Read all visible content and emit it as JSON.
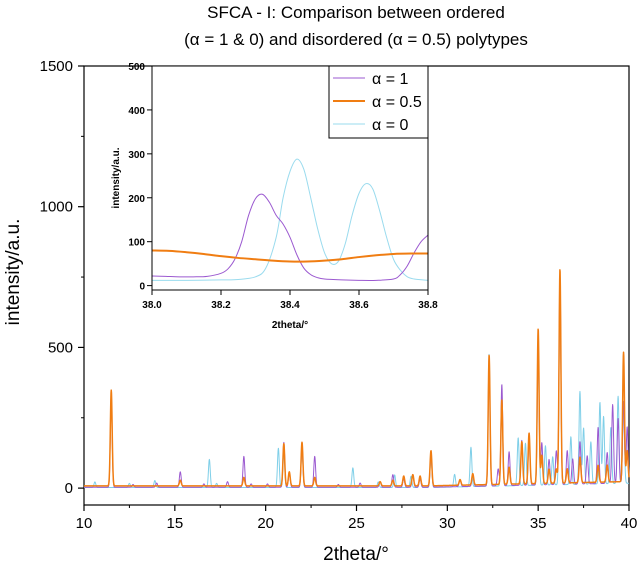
{
  "chart_data": [
    {
      "type": "line",
      "title_lines": [
        "SFCA - I: Comparison between ordered",
        "(α = 1 & 0) and disordered (α = 0.5) polytypes"
      ],
      "xlabel": "2theta/°",
      "ylabel": "intensity/a.u.",
      "xlim": [
        10,
        40
      ],
      "ylim": [
        -60,
        1500
      ],
      "xticks": [
        10,
        15,
        20,
        25,
        30,
        35,
        40
      ],
      "yticks": [
        0,
        500,
        1000,
        1500
      ],
      "grid": false,
      "series": [
        {
          "name": "α = 1",
          "color": "#9b59d0",
          "baseline": 3,
          "peaks": [
            [
              11.5,
              320
            ],
            [
              12.7,
              10
            ],
            [
              14.0,
              15
            ],
            [
              15.3,
              55
            ],
            [
              16.6,
              12
            ],
            [
              17.9,
              20
            ],
            [
              18.8,
              110
            ],
            [
              19.2,
              12
            ],
            [
              20.1,
              12
            ],
            [
              21.0,
              160
            ],
            [
              21.3,
              50
            ],
            [
              22.0,
              150
            ],
            [
              22.7,
              110
            ],
            [
              24.0,
              10
            ],
            [
              25.2,
              15
            ],
            [
              26.3,
              20
            ],
            [
              27.0,
              45
            ],
            [
              27.6,
              30
            ],
            [
              28.1,
              45
            ],
            [
              28.5,
              30
            ],
            [
              29.1,
              120
            ],
            [
              30.7,
              25
            ],
            [
              31.4,
              40
            ],
            [
              32.3,
              430
            ],
            [
              32.8,
              60
            ],
            [
              33.0,
              360
            ],
            [
              33.4,
              120
            ],
            [
              34.1,
              160
            ],
            [
              34.5,
              160
            ],
            [
              35.0,
              490
            ],
            [
              35.2,
              150
            ],
            [
              35.6,
              90
            ],
            [
              36.0,
              120
            ],
            [
              36.2,
              740
            ],
            [
              36.6,
              120
            ],
            [
              36.9,
              90
            ],
            [
              37.3,
              150
            ],
            [
              37.7,
              100
            ],
            [
              38.3,
              200
            ],
            [
              38.8,
              110
            ],
            [
              39.1,
              280
            ],
            [
              39.4,
              230
            ],
            [
              39.7,
              290
            ],
            [
              39.9,
              200
            ]
          ]
        },
        {
          "name": "α = 0.5",
          "color": "#f07d12",
          "baseline": 8,
          "peaks": [
            [
              11.5,
              340
            ],
            [
              15.3,
              20
            ],
            [
              18.8,
              30
            ],
            [
              21.0,
              150
            ],
            [
              21.3,
              50
            ],
            [
              22.0,
              155
            ],
            [
              22.7,
              30
            ],
            [
              26.3,
              15
            ],
            [
              27.0,
              20
            ],
            [
              27.6,
              35
            ],
            [
              28.1,
              40
            ],
            [
              28.5,
              35
            ],
            [
              29.1,
              125
            ],
            [
              30.7,
              20
            ],
            [
              31.4,
              40
            ],
            [
              32.3,
              460
            ],
            [
              33.0,
              300
            ],
            [
              33.4,
              60
            ],
            [
              34.1,
              150
            ],
            [
              34.5,
              180
            ],
            [
              35.0,
              550
            ],
            [
              35.2,
              100
            ],
            [
              35.6,
              50
            ],
            [
              36.0,
              50
            ],
            [
              36.2,
              760
            ],
            [
              36.6,
              50
            ],
            [
              37.3,
              90
            ],
            [
              38.3,
              60
            ],
            [
              38.8,
              60
            ],
            [
              39.7,
              460
            ],
            [
              39.9,
              110
            ]
          ]
        },
        {
          "name": "α = 0",
          "color": "#7fcfe8",
          "baseline": 2,
          "peaks": [
            [
              10.6,
              20
            ],
            [
              12.5,
              15
            ],
            [
              13.9,
              25
            ],
            [
              16.9,
              100
            ],
            [
              17.3,
              15
            ],
            [
              20.7,
              140
            ],
            [
              21.0,
              120
            ],
            [
              22.0,
              140
            ],
            [
              24.8,
              70
            ],
            [
              26.2,
              20
            ],
            [
              27.1,
              45
            ],
            [
              28.0,
              40
            ],
            [
              28.5,
              35
            ],
            [
              29.1,
              110
            ],
            [
              30.4,
              45
            ],
            [
              31.3,
              140
            ],
            [
              32.3,
              470
            ],
            [
              33.0,
              310
            ],
            [
              33.9,
              170
            ],
            [
              34.3,
              150
            ],
            [
              35.0,
              470
            ],
            [
              35.4,
              140
            ],
            [
              35.8,
              100
            ],
            [
              36.2,
              720
            ],
            [
              36.8,
              170
            ],
            [
              37.3,
              330
            ],
            [
              37.5,
              200
            ],
            [
              37.9,
              150
            ],
            [
              38.4,
              290
            ],
            [
              38.6,
              240
            ],
            [
              39.0,
              200
            ],
            [
              39.4,
              310
            ],
            [
              39.7,
              280
            ]
          ]
        }
      ]
    },
    {
      "type": "line",
      "xlabel": "2theta/°",
      "ylabel": "intensity/a.u.",
      "xlim": [
        38.0,
        38.8
      ],
      "ylim": [
        -10,
        500
      ],
      "xticks": [
        "38.0",
        "38.2",
        "38.4",
        "38.6",
        "38.8"
      ],
      "yticks": [
        0,
        100,
        200,
        300,
        400,
        500
      ],
      "legend_position": "top-right",
      "grid": false,
      "series": [
        {
          "name": "α = 1",
          "color": "#9b59d0",
          "x": [
            38.0,
            38.04,
            38.08,
            38.12,
            38.16,
            38.2,
            38.22,
            38.24,
            38.26,
            38.28,
            38.3,
            38.32,
            38.34,
            38.36,
            38.38,
            38.4,
            38.42,
            38.44,
            38.46,
            38.48,
            38.5,
            38.55,
            38.6,
            38.65,
            38.7,
            38.72,
            38.74,
            38.76,
            38.78,
            38.8
          ],
          "values": [
            22,
            21,
            20,
            20,
            21,
            28,
            38,
            60,
            100,
            160,
            198,
            208,
            190,
            160,
            140,
            110,
            70,
            40,
            25,
            18,
            15,
            13,
            12,
            12,
            15,
            25,
            45,
            75,
            100,
            115
          ]
        },
        {
          "name": "α = 0.5",
          "color": "#f07d12",
          "x": [
            38.0,
            38.05,
            38.1,
            38.15,
            38.2,
            38.25,
            38.3,
            38.35,
            38.4,
            38.45,
            38.5,
            38.55,
            38.6,
            38.65,
            38.7,
            38.75,
            38.8
          ],
          "values": [
            80,
            79,
            76,
            72,
            67,
            63,
            60,
            57,
            55,
            55,
            57,
            60,
            65,
            69,
            72,
            73,
            73
          ]
        },
        {
          "name": "α = 0",
          "color": "#9adbee",
          "x": [
            38.0,
            38.1,
            38.2,
            38.25,
            38.3,
            38.33,
            38.36,
            38.38,
            38.4,
            38.42,
            38.44,
            38.46,
            38.48,
            38.5,
            38.52,
            38.54,
            38.56,
            38.58,
            38.6,
            38.62,
            38.64,
            38.66,
            38.68,
            38.7,
            38.72,
            38.74,
            38.76,
            38.8
          ],
          "values": [
            12,
            12,
            13,
            14,
            20,
            40,
            110,
            200,
            260,
            288,
            265,
            200,
            130,
            75,
            50,
            55,
            95,
            160,
            210,
            232,
            220,
            170,
            110,
            60,
            35,
            20,
            15,
            12
          ]
        }
      ]
    }
  ]
}
